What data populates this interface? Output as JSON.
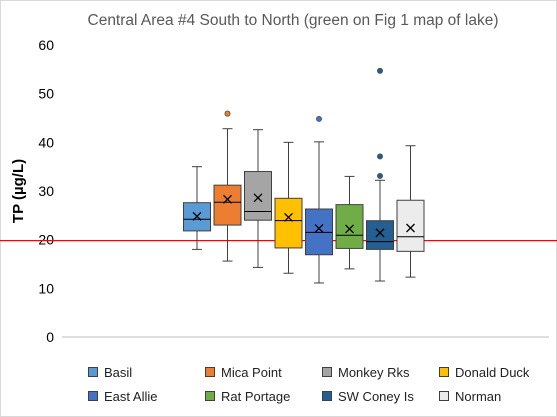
{
  "chart_data": {
    "type": "box",
    "title": "Central Area #4 South to North (green on Fig 1 map of lake)",
    "xlabel": "",
    "ylabel": "TP (µg/L)",
    "ylim": [
      0,
      60
    ],
    "yticks": [
      0,
      10,
      20,
      30,
      40,
      50,
      60
    ],
    "reference_line": 19.8,
    "reference_line_color": "#ff0000",
    "grid": false,
    "legend_position": "bottom",
    "series": [
      {
        "name": "Basil",
        "color": "#5b9bd5",
        "min": 18.0,
        "q1": 21.8,
        "median": 24.2,
        "q3": 27.6,
        "max": 35.0,
        "mean": 24.8,
        "outliers": []
      },
      {
        "name": "Mica Point",
        "color": "#ed7d31",
        "min": 15.6,
        "q1": 23.0,
        "median": 27.7,
        "q3": 31.2,
        "max": 42.8,
        "mean": 28.3,
        "outliers": [
          45.9
        ]
      },
      {
        "name": "Monkey Rks",
        "color": "#a5a5a5",
        "min": 14.3,
        "q1": 24.0,
        "median": 25.8,
        "q3": 34.0,
        "max": 42.6,
        "mean": 28.6,
        "outliers": []
      },
      {
        "name": "Donald Duck",
        "color": "#ffc000",
        "min": 13.1,
        "q1": 18.3,
        "median": 23.9,
        "q3": 28.5,
        "max": 40.0,
        "mean": 24.6,
        "outliers": []
      },
      {
        "name": "East Allie",
        "color": "#4472c4",
        "min": 11.1,
        "q1": 16.9,
        "median": 21.5,
        "q3": 26.3,
        "max": 40.1,
        "mean": 22.3,
        "outliers": [
          44.8
        ]
      },
      {
        "name": "Rat Portage",
        "color": "#70ad47",
        "min": 14.0,
        "q1": 18.2,
        "median": 20.9,
        "q3": 27.2,
        "max": 33.0,
        "mean": 22.2,
        "outliers": []
      },
      {
        "name": "SW Coney Is",
        "color": "#255e91",
        "min": 11.5,
        "q1": 18.0,
        "median": 19.6,
        "q3": 23.9,
        "max": 32.2,
        "mean": 21.4,
        "outliers": [
          33.1,
          37.1,
          54.7
        ]
      },
      {
        "name": "Norman",
        "color": "#ececec",
        "min": 12.3,
        "q1": 17.6,
        "median": 20.6,
        "q3": 28.1,
        "max": 39.3,
        "mean": 22.4,
        "outliers": []
      }
    ]
  }
}
